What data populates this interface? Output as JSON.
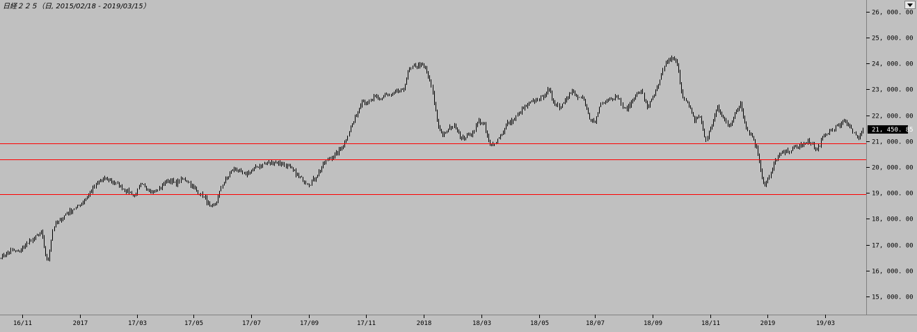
{
  "header": {
    "title": "日経２２５（日, 2015/02/18 - 2019/03/15）",
    "dropdown_icon": "chevron-down-icon"
  },
  "colors": {
    "background": "#c0c0c0",
    "candle": "#000000",
    "support_line": "#ff0000",
    "axis_line": "#808080",
    "current_price_bg": "#000000",
    "current_price_text": "#ffffff"
  },
  "chart_data": {
    "type": "line",
    "title": "日経２２５（日, 2015/02/18 - 2019/03/15）",
    "xlabel": "",
    "ylabel": "",
    "ylim": [
      14300,
      26450
    ],
    "x_tick_labels": [
      "16/11",
      "2017",
      "17/03",
      "17/05",
      "17/07",
      "17/09",
      "17/11",
      "2018",
      "18/03",
      "18/05",
      "18/07",
      "18/09",
      "18/11",
      "2019",
      "19/03"
    ],
    "x_ticks": [
      {
        "label": "16/11",
        "index": 15
      },
      {
        "label": "2017",
        "index": 55
      },
      {
        "label": "17/03",
        "index": 95
      },
      {
        "label": "17/05",
        "index": 134
      },
      {
        "label": "17/07",
        "index": 174
      },
      {
        "label": "17/09",
        "index": 214
      },
      {
        "label": "17/11",
        "index": 254
      },
      {
        "label": "2018",
        "index": 294
      },
      {
        "label": "18/03",
        "index": 334
      },
      {
        "label": "18/05",
        "index": 374
      },
      {
        "label": "18/07",
        "index": 413
      },
      {
        "label": "18/09",
        "index": 453
      },
      {
        "label": "18/11",
        "index": 493
      },
      {
        "label": "2019",
        "index": 533
      },
      {
        "label": "19/03",
        "index": 573
      }
    ],
    "y_tick_values": [
      15000,
      16000,
      17000,
      18000,
      19000,
      20000,
      21000,
      22000,
      23000,
      24000,
      25000,
      26000
    ],
    "y_tick_labels": [
      "15, 000. 00",
      "16, 000. 00",
      "17, 000. 00",
      "18, 000. 00",
      "19, 000. 00",
      "20, 000. 00",
      "21, 000. 00",
      "22, 000. 00",
      "23, 000. 00",
      "24, 000. 00",
      "25, 000. 00",
      "26, 000. 00"
    ],
    "horizontal_lines": [
      20900,
      20300,
      18950
    ],
    "current_value": 21450.85,
    "current_value_label": "21, 450. 85",
    "series": [
      {
        "approximate_closes": [
          16550,
          16650,
          16800,
          16700,
          16950,
          17100,
          17300,
          17450,
          16250,
          17700,
          17900,
          18150,
          18300,
          18450,
          18650,
          18900,
          19250,
          19450,
          19550,
          19450,
          19350,
          19150,
          19050,
          18900,
          19300,
          19200,
          19050,
          19100,
          19400,
          19500,
          19350,
          19550,
          19500,
          19200,
          19000,
          18800,
          18400,
          18600,
          19350,
          19650,
          19950,
          19800,
          19700,
          19850,
          20000,
          20100,
          20150,
          20200,
          20150,
          20050,
          19900,
          19650,
          19500,
          19350,
          19600,
          19950,
          20300,
          20400,
          20600,
          20950,
          21500,
          22000,
          22600,
          22400,
          22700,
          22600,
          22800,
          22750,
          22950,
          22900,
          23700,
          23900,
          23950,
          23800,
          23000,
          21600,
          21200,
          21500,
          21600,
          21100,
          21200,
          21300,
          21800,
          21600,
          20800,
          21000,
          21300,
          21700,
          21800,
          22100,
          22300,
          22500,
          22600,
          22700,
          23000,
          22500,
          22300,
          22700,
          22900,
          22700,
          22600,
          21900,
          21700,
          22500,
          22600,
          22700,
          22700,
          22200,
          22400,
          22800,
          22900,
          22300,
          22700,
          23200,
          24000,
          24200,
          24100,
          22800,
          22400,
          21800,
          22000,
          21000,
          21600,
          22300,
          21900,
          21600,
          22000,
          22500,
          21500,
          21200,
          20500,
          19300,
          19600,
          20300,
          20500,
          20600,
          20700,
          20800,
          20900,
          21000,
          20600,
          21100,
          21300,
          21500,
          21600,
          21800,
          21500,
          21100,
          21450
        ]
      }
    ]
  }
}
